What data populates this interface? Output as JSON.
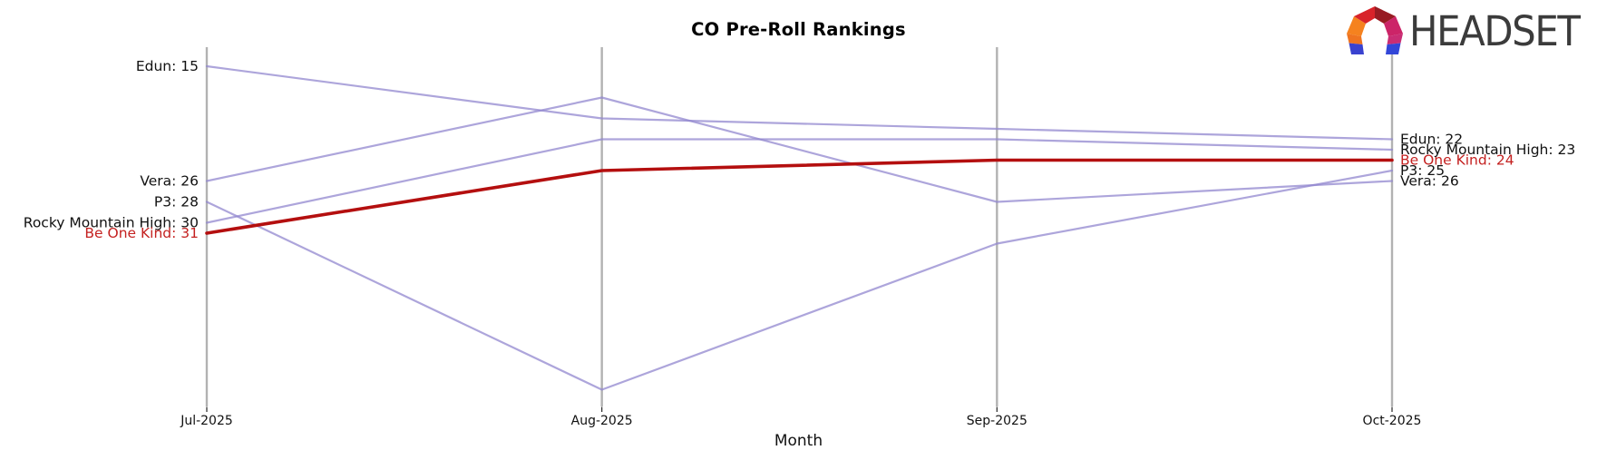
{
  "header": {
    "title": "CO Pre-Roll Rankings"
  },
  "logo": {
    "wordmark": "HEADSET",
    "icon": "headset-faceted-arch-icon",
    "icon_colors": [
      "#f5821f",
      "#d8232a",
      "#971b22",
      "#cc2468",
      "#3942cf",
      "#3246d8"
    ]
  },
  "colors": {
    "background": "#ffffff",
    "axis": "#b2b2b2",
    "tick": "#262626",
    "text": "#111111",
    "purple_series": "#9287cf",
    "red_series_line": "#b40f0f",
    "red_series_text": "#c42120"
  },
  "chart_data": {
    "type": "line",
    "subtype": "bump-ranking-parallel-coordinates",
    "title": "CO Pre-Roll Rankings",
    "xlabel": "Month",
    "ylabel": "",
    "y_is_rank": true,
    "ylim": [
      13,
      48
    ],
    "y_inverted": true,
    "grid": false,
    "legend": "endpoint-labels",
    "categories": [
      "Jul-2025",
      "Aug-2025",
      "Sep-2025",
      "Oct-2025"
    ],
    "series": [
      {
        "name": "Edun",
        "values": [
          15,
          20,
          21,
          22
        ],
        "color": "#9287cf",
        "opacity": 0.75,
        "width": 2.2,
        "label_color": "#111111",
        "left_label": "Edun: 15",
        "right_label": "Edun: 22"
      },
      {
        "name": "Vera",
        "values": [
          26,
          18,
          28,
          26
        ],
        "color": "#9287cf",
        "opacity": 0.75,
        "width": 2.2,
        "label_color": "#111111",
        "left_label": "Vera: 26",
        "right_label": "Vera: 26"
      },
      {
        "name": "P3",
        "values": [
          28,
          46,
          32,
          25
        ],
        "color": "#9287cf",
        "opacity": 0.75,
        "width": 2.2,
        "label_color": "#111111",
        "left_label": "P3: 28",
        "right_label": "P3: 25"
      },
      {
        "name": "Rocky Mountain High",
        "values": [
          30,
          22,
          22,
          23
        ],
        "color": "#9287cf",
        "opacity": 0.75,
        "width": 2.2,
        "label_color": "#111111",
        "left_label": "Rocky Mountain High: 30",
        "right_label": "Rocky Mountain High: 23"
      },
      {
        "name": "Be One Kind",
        "values": [
          31,
          25,
          24,
          24
        ],
        "color": "#b40f0f",
        "opacity": 1,
        "width": 3.6,
        "label_color": "#c42120",
        "highlighted": true,
        "left_label": "Be One Kind: 31",
        "right_label": "Be One Kind: 24"
      }
    ]
  }
}
